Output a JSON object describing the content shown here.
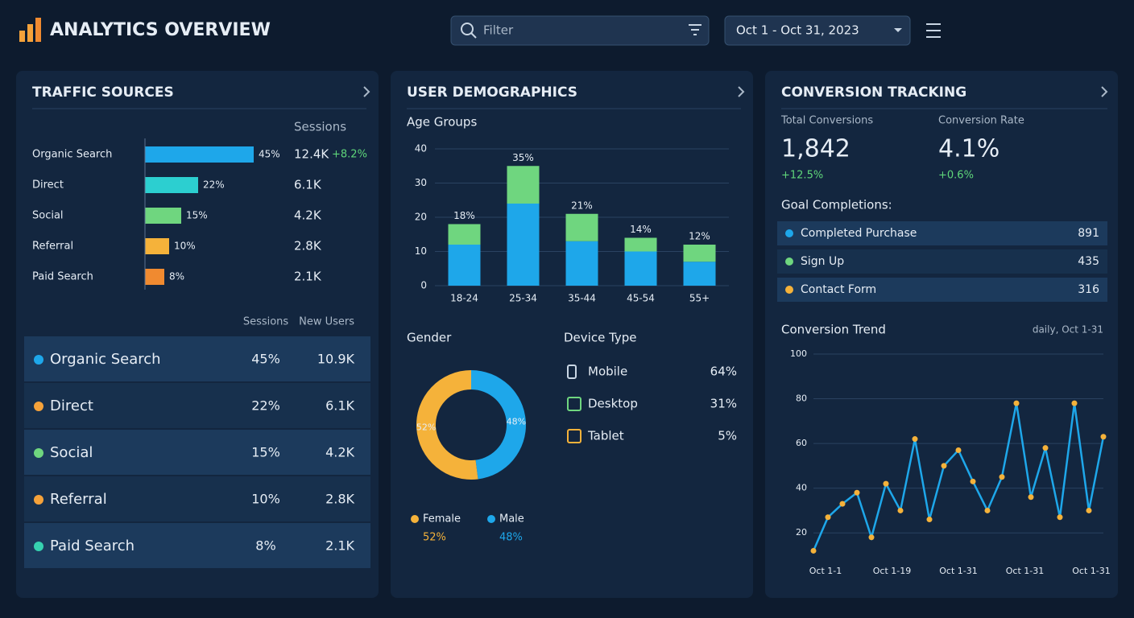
{
  "header": {
    "title": "ANALYTICS OVERVIEW",
    "filter_placeholder": "Filter",
    "date_range": "Oct 1 - Oct 31, 2023"
  },
  "traffic_sources": {
    "title": "TRAFFIC SOURCES",
    "sessions_header": "Sessions",
    "bars": [
      {
        "name": "Organic Search",
        "share": 45,
        "share_label": "45%",
        "sessions": "12.4K",
        "change": "+8.2%",
        "color": "#1ea7ea"
      },
      {
        "name": "Direct",
        "share": 22,
        "share_label": "22%",
        "sessions": "6.1K",
        "color": "#2ccfd0"
      },
      {
        "name": "Social",
        "share": 15,
        "share_label": "15%",
        "sessions": "4.2K",
        "color": "#6fd67f"
      },
      {
        "name": "Referral",
        "share": 10,
        "share_label": "10%",
        "sessions": "2.8K",
        "color": "#f5b23a"
      },
      {
        "name": "Paid Search",
        "share": 8,
        "share_label": "8%",
        "sessions": "2.1K",
        "color": "#f08a30"
      }
    ],
    "table": {
      "headers": [
        "Sessions",
        "New Users"
      ],
      "rows": [
        {
          "name": "Organic Search",
          "share": "45%",
          "new_users": "10.9K",
          "color": "#1ea7ea"
        },
        {
          "name": "Direct",
          "share": "22%",
          "new_users": "6.1K",
          "color": "#f5a23a"
        },
        {
          "name": "Social",
          "share": "15%",
          "new_users": "4.2K",
          "color": "#6fd67f"
        },
        {
          "name": "Referral",
          "share": "10%",
          "new_users": "2.8K",
          "color": "#f5a23a"
        },
        {
          "name": "Paid Search",
          "share": "8%",
          "new_users": "2.1K",
          "color": "#36d1b0"
        }
      ]
    }
  },
  "demographics": {
    "title": "USER DEMOGRAPHICS",
    "age_groups": {
      "title": "Age Groups",
      "categories": [
        "18-24",
        "25-34",
        "35-44",
        "45-54",
        "55+"
      ],
      "ylim": [
        0,
        40
      ],
      "yticks": [
        0,
        10,
        20,
        30,
        40
      ],
      "series": [
        {
          "color": "#1ea7ea",
          "values": [
            12,
            24,
            13,
            10,
            7
          ]
        },
        {
          "color": "#6fd67f",
          "values": [
            6,
            11,
            8,
            4,
            5
          ]
        }
      ],
      "total_labels": [
        "18%",
        "35%",
        "21%",
        "14%",
        "12%"
      ]
    },
    "gender": {
      "title": "Gender",
      "slices": [
        {
          "name": "Female",
          "value": 52,
          "label": "52%",
          "color": "#f5b23a"
        },
        {
          "name": "Male",
          "value": 48,
          "label": "48%",
          "color": "#1ea7ea"
        }
      ]
    },
    "device_type": {
      "title": "Device Type",
      "rows": [
        {
          "name": "Mobile",
          "share": "64%"
        },
        {
          "name": "Desktop",
          "share": "31%"
        },
        {
          "name": "Tablet",
          "share": "5%"
        }
      ]
    }
  },
  "conversion": {
    "title": "CONVERSION TRACKING",
    "total": {
      "label": "Total Conversions",
      "value": "1,842",
      "change": "+12.5%"
    },
    "rate": {
      "label": "Conversion Rate",
      "value": "4.1%",
      "change": "+0.6%"
    },
    "goals": {
      "title": "Goal Completions:",
      "rows": [
        {
          "name": "Completed Purchase",
          "value": "891",
          "color": "#1ea7ea"
        },
        {
          "name": "Sign Up",
          "value": "435",
          "color": "#6fd67f"
        },
        {
          "name": "Contact Form",
          "value": "316",
          "color": "#f5b23a"
        }
      ]
    },
    "trend": {
      "title": "Conversion Trend",
      "subtitle": "daily, Oct 1-31",
      "ylim": [
        10,
        100
      ],
      "yticks": [
        20,
        40,
        60,
        80,
        100
      ],
      "x_labels": [
        "Oct 1-1",
        "Oct 1-19",
        "Oct 1-31",
        "Oct 1-31",
        "Oct 1-31"
      ],
      "values": [
        12,
        27,
        33,
        38,
        18,
        42,
        30,
        62,
        26,
        50,
        57,
        43,
        30,
        45,
        78,
        36,
        58,
        27,
        78,
        30,
        63
      ],
      "color": "#1ea7ea",
      "point_color": "#f5b23a"
    }
  }
}
